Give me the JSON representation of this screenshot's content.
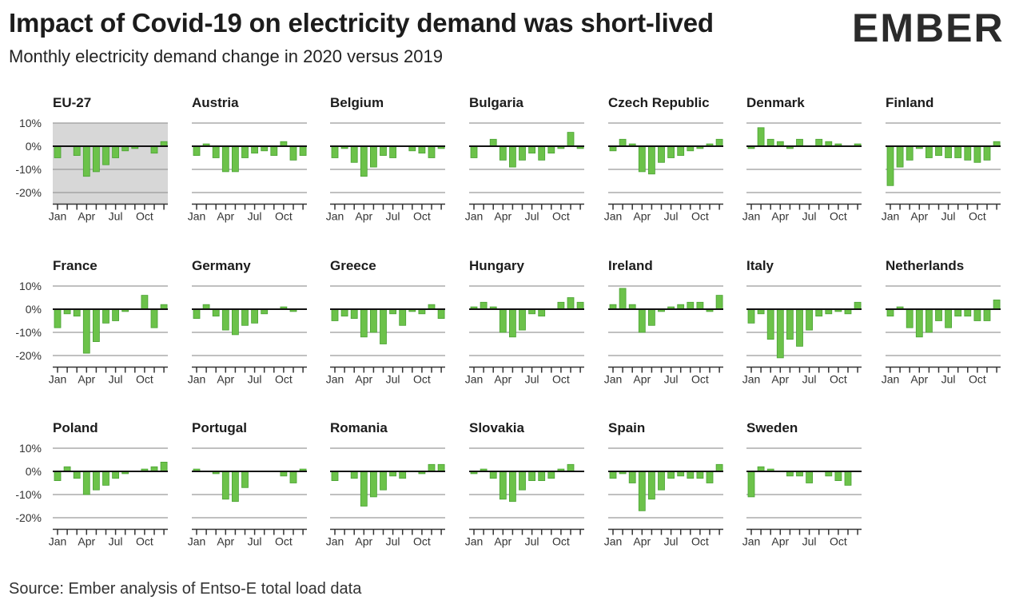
{
  "header": {
    "title": "Impact of Covid-19 on electricity demand was short-lived",
    "subtitle": "Monthly electricity demand change in 2020 versus 2019"
  },
  "logo": {
    "text": "EMBER",
    "accent_color": "#5cc04a",
    "text_color": "#2b2b2b"
  },
  "footer": {
    "source": "Source: Ember analysis of Entso-E total load data"
  },
  "colors": {
    "bar": "#6cc24a",
    "bar_stroke": "#4aa233",
    "highlight_bg": "#d7d7d7",
    "zero_line": "#111111",
    "grid": "#9a9a9a"
  },
  "chart_data": {
    "type": "bar",
    "categories": [
      "Jan",
      "Feb",
      "Mar",
      "Apr",
      "May",
      "Jun",
      "Jul",
      "Aug",
      "Sep",
      "Oct",
      "Nov",
      "Dec"
    ],
    "x_tick_labels": [
      "Jan",
      "Apr",
      "Jul",
      "Oct"
    ],
    "y_tick_labels": [
      "10%",
      "0%",
      "-10%",
      "-20%"
    ],
    "ylim": [
      -25,
      10
    ],
    "unit": "%",
    "highlighted": "EU-27",
    "series": [
      {
        "name": "EU-27",
        "values": [
          -5,
          0,
          -4,
          -13,
          -11,
          -8,
          -5,
          -2,
          -1,
          0,
          -3,
          2
        ]
      },
      {
        "name": "Austria",
        "values": [
          -4,
          1,
          -5,
          -11,
          -11,
          -5,
          -3,
          -2,
          -4,
          2,
          -6,
          -4
        ]
      },
      {
        "name": "Belgium",
        "values": [
          -5,
          -1,
          -7,
          -13,
          -9,
          -4,
          -5,
          0,
          -2,
          -3,
          -5,
          -1
        ]
      },
      {
        "name": "Bulgaria",
        "values": [
          -5,
          0,
          3,
          -6,
          -9,
          -6,
          -3,
          -6,
          -3,
          -1,
          6,
          -1
        ]
      },
      {
        "name": "Czech Republic",
        "values": [
          -2,
          3,
          1,
          -11,
          -12,
          -7,
          -5,
          -4,
          -2,
          -1,
          1,
          3
        ]
      },
      {
        "name": "Denmark",
        "values": [
          -1,
          8,
          3,
          2,
          -1,
          3,
          0,
          3,
          2,
          1,
          0,
          1
        ]
      },
      {
        "name": "Finland",
        "values": [
          -17,
          -9,
          -6,
          -1,
          -5,
          -4,
          -5,
          -5,
          -6,
          -7,
          -6,
          2
        ]
      },
      {
        "name": "France",
        "values": [
          -8,
          -2,
          -3,
          -19,
          -14,
          -6,
          -5,
          -1,
          0,
          6,
          -8,
          2
        ]
      },
      {
        "name": "Germany",
        "values": [
          -4,
          2,
          -3,
          -9,
          -11,
          -7,
          -6,
          -2,
          0,
          1,
          -1,
          0
        ]
      },
      {
        "name": "Greece",
        "values": [
          -5,
          -3,
          -4,
          -12,
          -10,
          -15,
          -2,
          -7,
          -1,
          -2,
          2,
          -4
        ]
      },
      {
        "name": "Hungary",
        "values": [
          1,
          3,
          1,
          -10,
          -12,
          -9,
          -2,
          -3,
          0,
          3,
          5,
          3
        ]
      },
      {
        "name": "Ireland",
        "values": [
          2,
          9,
          2,
          -10,
          -7,
          -1,
          1,
          2,
          3,
          3,
          -1,
          6
        ]
      },
      {
        "name": "Italy",
        "values": [
          -6,
          -2,
          -13,
          -21,
          -13,
          -16,
          -9,
          -3,
          -2,
          -1,
          -2,
          3
        ]
      },
      {
        "name": "Netherlands",
        "values": [
          -3,
          1,
          -8,
          -12,
          -10,
          -5,
          -8,
          -3,
          -3,
          -5,
          -5,
          4
        ]
      },
      {
        "name": "Poland",
        "values": [
          -4,
          2,
          -3,
          -10,
          -8,
          -6,
          -3,
          -1,
          0,
          1,
          2,
          4
        ]
      },
      {
        "name": "Portugal",
        "values": [
          1,
          0,
          -1,
          -12,
          -13,
          -7,
          0,
          0,
          0,
          -2,
          -5,
          1
        ]
      },
      {
        "name": "Romania",
        "values": [
          -4,
          0,
          -3,
          -15,
          -11,
          -8,
          -2,
          -3,
          0,
          -1,
          3,
          3
        ]
      },
      {
        "name": "Slovakia",
        "values": [
          -1,
          1,
          -3,
          -12,
          -13,
          -8,
          -4,
          -4,
          -3,
          1,
          3,
          0
        ]
      },
      {
        "name": "Spain",
        "values": [
          -3,
          -1,
          -5,
          -17,
          -12,
          -8,
          -3,
          -2,
          -3,
          -3,
          -5,
          3
        ]
      },
      {
        "name": "Sweden",
        "values": [
          -11,
          2,
          1,
          0,
          -2,
          -2,
          -5,
          0,
          -2,
          -4,
          -6,
          0
        ]
      }
    ]
  }
}
